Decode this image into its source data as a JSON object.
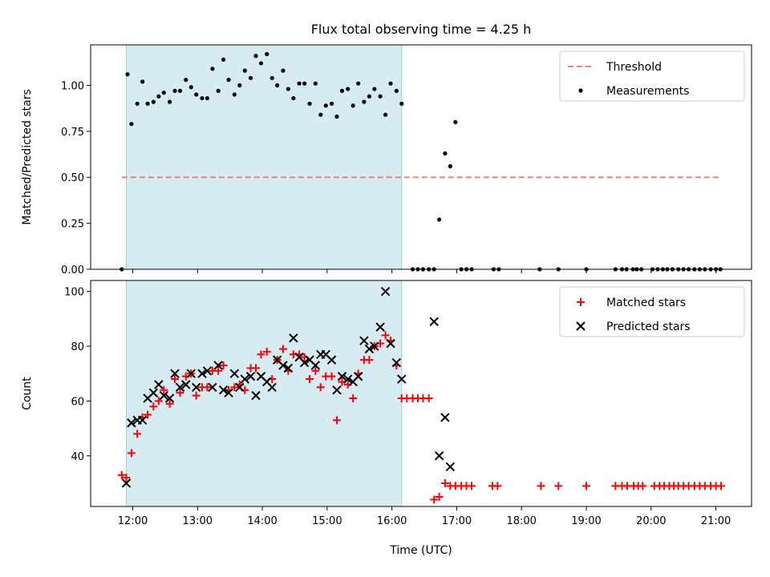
{
  "chart_data": [
    {
      "type": "scatter",
      "title": "Flux total observing time = 4.25 h",
      "xlabel": "",
      "ylabel": "Matched/Predicted stars",
      "ylim": [
        0,
        1.22
      ],
      "yticks": [
        "0.00",
        "0.25",
        "0.50",
        "0.75",
        "1.00"
      ],
      "x_unit": "hours UTC",
      "xlim": [
        11.35,
        21.55
      ],
      "observing_window": [
        11.9,
        16.15
      ],
      "legend_position": "top-right",
      "legend": [
        "Threshold",
        "Measurements"
      ],
      "threshold": {
        "name": "Threshold",
        "y": 0.5,
        "x_range": [
          11.83,
          21.08
        ],
        "color": "#f08080"
      },
      "series": [
        {
          "name": "Measurements",
          "color": "#000000",
          "points": [
            [
              11.83,
              0.0
            ],
            [
              11.92,
              1.06
            ],
            [
              11.98,
              0.79
            ],
            [
              12.07,
              0.9
            ],
            [
              12.15,
              1.02
            ],
            [
              12.23,
              0.9
            ],
            [
              12.32,
              0.91
            ],
            [
              12.4,
              0.94
            ],
            [
              12.48,
              0.96
            ],
            [
              12.57,
              0.91
            ],
            [
              12.65,
              0.97
            ],
            [
              12.73,
              0.97
            ],
            [
              12.82,
              1.03
            ],
            [
              12.9,
              0.99
            ],
            [
              12.98,
              0.95
            ],
            [
              13.07,
              0.93
            ],
            [
              13.15,
              0.93
            ],
            [
              13.23,
              1.09
            ],
            [
              13.32,
              0.97
            ],
            [
              13.4,
              1.14
            ],
            [
              13.48,
              1.03
            ],
            [
              13.57,
              0.95
            ],
            [
              13.65,
              1.0
            ],
            [
              13.73,
              1.08
            ],
            [
              13.82,
              1.04
            ],
            [
              13.9,
              1.16
            ],
            [
              13.98,
              1.12
            ],
            [
              14.07,
              1.17
            ],
            [
              14.15,
              1.04
            ],
            [
              14.23,
              1.0
            ],
            [
              14.32,
              1.08
            ],
            [
              14.4,
              0.98
            ],
            [
              14.48,
              0.93
            ],
            [
              14.57,
              1.01
            ],
            [
              14.65,
              1.01
            ],
            [
              14.73,
              0.9
            ],
            [
              14.82,
              1.01
            ],
            [
              14.9,
              0.84
            ],
            [
              14.98,
              0.89
            ],
            [
              15.07,
              0.9
            ],
            [
              15.15,
              0.83
            ],
            [
              15.23,
              0.97
            ],
            [
              15.32,
              0.98
            ],
            [
              15.4,
              0.89
            ],
            [
              15.48,
              1.01
            ],
            [
              15.57,
              0.91
            ],
            [
              15.65,
              0.94
            ],
            [
              15.73,
              0.98
            ],
            [
              15.82,
              0.94
            ],
            [
              15.9,
              0.84
            ],
            [
              15.98,
              1.01
            ],
            [
              16.07,
              0.97
            ],
            [
              16.15,
              0.9
            ],
            [
              16.32,
              0.0
            ],
            [
              16.4,
              0.0
            ],
            [
              16.48,
              0.0
            ],
            [
              16.57,
              0.0
            ],
            [
              16.65,
              0.0
            ],
            [
              16.73,
              0.27
            ],
            [
              16.82,
              0.63
            ],
            [
              16.9,
              0.56
            ],
            [
              16.98,
              0.8
            ],
            [
              17.07,
              0.0
            ],
            [
              17.15,
              0.0
            ],
            [
              17.23,
              0.0
            ],
            [
              17.57,
              0.0
            ],
            [
              17.65,
              0.0
            ],
            [
              18.28,
              0.0
            ],
            [
              18.57,
              0.0
            ],
            [
              19.0,
              0.0
            ],
            [
              19.45,
              0.0
            ],
            [
              19.55,
              0.0
            ],
            [
              19.62,
              0.0
            ],
            [
              19.72,
              0.0
            ],
            [
              19.78,
              0.0
            ],
            [
              19.85,
              0.0
            ],
            [
              20.02,
              0.0
            ],
            [
              20.1,
              0.0
            ],
            [
              20.18,
              0.0
            ],
            [
              20.25,
              0.0
            ],
            [
              20.33,
              0.0
            ],
            [
              20.42,
              0.0
            ],
            [
              20.5,
              0.0
            ],
            [
              20.58,
              0.0
            ],
            [
              20.67,
              0.0
            ],
            [
              20.75,
              0.0
            ],
            [
              20.83,
              0.0
            ],
            [
              20.92,
              0.0
            ],
            [
              21.0,
              0.0
            ],
            [
              21.07,
              0.0
            ]
          ]
        }
      ]
    },
    {
      "type": "scatter",
      "title": "",
      "xlabel": "Time (UTC)",
      "ylabel": "Count",
      "ylim": [
        21.5,
        104
      ],
      "yticks": [
        "40",
        "60",
        "80",
        "100"
      ],
      "x_unit": "hours UTC",
      "xlim": [
        11.35,
        21.55
      ],
      "xticks": [
        "12:00",
        "13:00",
        "14:00",
        "15:00",
        "16:00",
        "17:00",
        "18:00",
        "19:00",
        "20:00",
        "21:00"
      ],
      "observing_window": [
        11.9,
        16.15
      ],
      "legend_position": "top-right",
      "legend": [
        "Matched stars",
        "Predicted stars"
      ],
      "series": [
        {
          "name": "Matched stars",
          "marker": "plus",
          "color": "#ff0000",
          "points": [
            [
              11.83,
              33
            ],
            [
              11.9,
              32
            ],
            [
              11.98,
              41
            ],
            [
              12.07,
              48
            ],
            [
              12.15,
              54
            ],
            [
              12.23,
              55
            ],
            [
              12.32,
              58
            ],
            [
              12.4,
              60
            ],
            [
              12.48,
              64
            ],
            [
              12.57,
              59
            ],
            [
              12.65,
              68
            ],
            [
              12.73,
              63
            ],
            [
              12.82,
              69
            ],
            [
              12.9,
              70
            ],
            [
              12.98,
              62
            ],
            [
              13.07,
              65
            ],
            [
              13.15,
              65
            ],
            [
              13.23,
              71
            ],
            [
              13.32,
              71
            ],
            [
              13.4,
              73
            ],
            [
              13.48,
              64
            ],
            [
              13.57,
              65
            ],
            [
              13.65,
              66
            ],
            [
              13.73,
              64
            ],
            [
              13.82,
              72
            ],
            [
              13.9,
              72
            ],
            [
              13.98,
              77
            ],
            [
              14.07,
              78
            ],
            [
              14.15,
              68
            ],
            [
              14.23,
              75
            ],
            [
              14.32,
              79
            ],
            [
              14.4,
              71
            ],
            [
              14.48,
              77
            ],
            [
              14.57,
              77
            ],
            [
              14.65,
              76
            ],
            [
              14.73,
              68
            ],
            [
              14.82,
              71
            ],
            [
              14.9,
              65
            ],
            [
              14.98,
              69
            ],
            [
              15.07,
              69
            ],
            [
              15.15,
              53
            ],
            [
              15.23,
              67
            ],
            [
              15.32,
              66
            ],
            [
              15.4,
              61
            ],
            [
              15.48,
              70
            ],
            [
              15.57,
              75
            ],
            [
              15.65,
              75
            ],
            [
              15.73,
              80
            ],
            [
              15.82,
              81
            ],
            [
              15.9,
              84
            ],
            [
              15.98,
              82
            ],
            [
              16.07,
              73
            ],
            [
              16.15,
              61
            ],
            [
              16.23,
              61
            ],
            [
              16.32,
              61
            ],
            [
              16.4,
              61
            ],
            [
              16.48,
              61
            ],
            [
              16.57,
              61
            ],
            [
              16.65,
              24
            ],
            [
              16.73,
              25
            ],
            [
              16.82,
              30
            ],
            [
              16.9,
              29
            ],
            [
              16.98,
              29
            ],
            [
              17.07,
              29
            ],
            [
              17.15,
              29
            ],
            [
              17.23,
              29
            ],
            [
              17.55,
              29
            ],
            [
              17.63,
              29
            ],
            [
              18.3,
              29
            ],
            [
              18.57,
              29
            ],
            [
              19.0,
              29
            ],
            [
              19.45,
              29
            ],
            [
              19.55,
              29
            ],
            [
              19.63,
              29
            ],
            [
              19.73,
              29
            ],
            [
              19.8,
              29
            ],
            [
              19.87,
              29
            ],
            [
              20.05,
              29
            ],
            [
              20.13,
              29
            ],
            [
              20.2,
              29
            ],
            [
              20.28,
              29
            ],
            [
              20.35,
              29
            ],
            [
              20.42,
              29
            ],
            [
              20.5,
              29
            ],
            [
              20.58,
              29
            ],
            [
              20.67,
              29
            ],
            [
              20.75,
              29
            ],
            [
              20.83,
              29
            ],
            [
              20.92,
              29
            ],
            [
              21.0,
              29
            ],
            [
              21.08,
              29
            ]
          ]
        },
        {
          "name": "Predicted stars",
          "marker": "x",
          "color": "#000000",
          "points": [
            [
              11.9,
              30
            ],
            [
              11.98,
              52
            ],
            [
              12.07,
              53
            ],
            [
              12.15,
              53
            ],
            [
              12.23,
              61
            ],
            [
              12.32,
              63
            ],
            [
              12.4,
              66
            ],
            [
              12.48,
              62
            ],
            [
              12.57,
              61
            ],
            [
              12.65,
              70
            ],
            [
              12.73,
              65
            ],
            [
              12.82,
              66
            ],
            [
              12.9,
              70
            ],
            [
              12.98,
              65
            ],
            [
              13.07,
              70
            ],
            [
              13.15,
              71
            ],
            [
              13.23,
              65
            ],
            [
              13.32,
              73
            ],
            [
              13.4,
              64
            ],
            [
              13.48,
              63
            ],
            [
              13.57,
              70
            ],
            [
              13.65,
              65
            ],
            [
              13.73,
              68
            ],
            [
              13.82,
              69
            ],
            [
              13.9,
              62
            ],
            [
              13.98,
              69
            ],
            [
              14.07,
              67
            ],
            [
              14.15,
              65
            ],
            [
              14.23,
              75
            ],
            [
              14.32,
              73
            ],
            [
              14.4,
              72
            ],
            [
              14.48,
              83
            ],
            [
              14.57,
              76
            ],
            [
              14.65,
              74
            ],
            [
              14.73,
              75
            ],
            [
              14.82,
              73
            ],
            [
              14.9,
              77
            ],
            [
              14.98,
              77
            ],
            [
              15.07,
              75
            ],
            [
              15.15,
              64
            ],
            [
              15.23,
              69
            ],
            [
              15.32,
              68
            ],
            [
              15.4,
              67
            ],
            [
              15.48,
              69
            ],
            [
              15.57,
              82
            ],
            [
              15.65,
              79
            ],
            [
              15.73,
              80
            ],
            [
              15.82,
              87
            ],
            [
              15.9,
              100
            ],
            [
              15.98,
              81
            ],
            [
              16.07,
              74
            ],
            [
              16.15,
              68
            ],
            [
              16.65,
              89
            ],
            [
              16.73,
              40
            ],
            [
              16.82,
              54
            ],
            [
              16.9,
              36
            ]
          ]
        }
      ]
    }
  ]
}
